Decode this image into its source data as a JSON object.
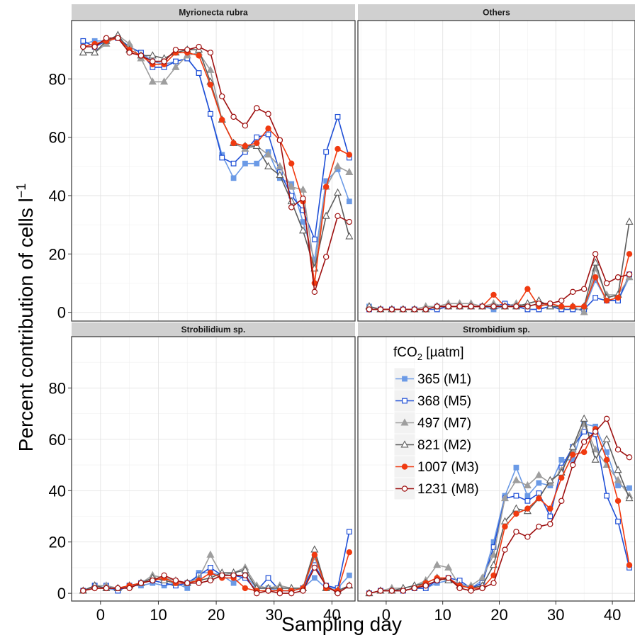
{
  "chart_data": {
    "type": "line",
    "xlabel": "Sampling day",
    "ylabel": "Percent contribution of cells  l",
    "ylabel_sup": "−1",
    "xlim": [
      -5,
      44
    ],
    "ylim": [
      -3,
      100
    ],
    "x_ticks": [
      0,
      10,
      20,
      30,
      40
    ],
    "y_ticks": [
      0,
      20,
      40,
      60,
      80
    ],
    "grid": true,
    "legend": {
      "title": "fCO",
      "title_sub": "2",
      "title_suffix": " [µatm]",
      "placement": "inside bottom-right panel, top-left",
      "entries": [
        "365 (M1)",
        "368 (M5)",
        "497 (M7)",
        "821 (M2)",
        "1007 (M3)",
        "1231 (M8)"
      ]
    },
    "series_styles": [
      {
        "name": "365 (M1)",
        "color": "#6b9ae6",
        "marker": "square",
        "filled": true
      },
      {
        "name": "368 (M5)",
        "color": "#1f4fd6",
        "marker": "square",
        "filled": false
      },
      {
        "name": "497 (M7)",
        "color": "#9e9e9e",
        "marker": "triangle",
        "filled": true
      },
      {
        "name": "821 (M2)",
        "color": "#5c5c5c",
        "marker": "triangle",
        "filled": false
      },
      {
        "name": "1007 (M3)",
        "color": "#f03a10",
        "marker": "circle",
        "filled": true
      },
      {
        "name": "1231 (M8)",
        "color": "#9e1010",
        "marker": "circle",
        "filled": false
      }
    ],
    "x": [
      -3,
      -1,
      1,
      3,
      5,
      7,
      9,
      11,
      13,
      15,
      17,
      19,
      21,
      23,
      25,
      27,
      29,
      31,
      33,
      35,
      37,
      39,
      41,
      43
    ],
    "panels": [
      {
        "title": "Myrionecta rubra",
        "series": [
          {
            "name": "365 (M1)",
            "values": [
              92,
              93,
              93,
              94,
              91,
              89,
              86,
              85,
              86,
              87,
              82,
              68,
              54,
              46,
              51,
              51,
              55,
              46,
              44,
              31,
              18,
              45,
              49,
              38
            ]
          },
          {
            "name": "368 (M5)",
            "values": [
              93,
              91,
              93,
              94,
              91,
              89,
              84,
              84,
              86,
              87,
              82,
              68,
              53,
              51,
              55,
              60,
              61,
              48,
              40,
              35,
              25,
              55,
              67,
              53
            ]
          },
          {
            "name": "497 (M7)",
            "values": [
              89,
              89,
              92,
              95,
              92,
              87,
              79,
              79,
              84,
              88,
              89,
              83,
              66,
              58,
              56,
              57,
              54,
              50,
              43,
              42,
              15,
              43,
              50,
              48
            ]
          },
          {
            "name": "821 (M2)",
            "values": [
              89,
              89,
              93,
              95,
              90,
              88,
              88,
              87,
              89,
              90,
              90,
              79,
              66,
              58,
              57,
              57,
              50,
              47,
              38,
              28,
              15,
              33,
              41,
              26
            ]
          },
          {
            "name": "1007 (M3)",
            "values": [
              91,
              92,
              93,
              94,
              90,
              88,
              85,
              85,
              89,
              89,
              88,
              78,
              66,
              58,
              57,
              58,
              63,
              59,
              51,
              38,
              10,
              43,
              56,
              54
            ]
          },
          {
            "name": "1231 (M8)",
            "values": [
              91,
              91,
              94,
              94,
              89,
              88,
              86,
              86,
              90,
              90,
              91,
              89,
              74,
              67,
              64,
              70,
              68,
              59,
              36,
              39,
              7,
              19,
              33,
              31
            ]
          }
        ]
      },
      {
        "title": "Others",
        "series": [
          {
            "name": "365 (M1)",
            "values": [
              2,
              1,
              1,
              1,
              1,
              1,
              2,
              2,
              2,
              2,
              2,
              1,
              2,
              2,
              1,
              1,
              2,
              1,
              1,
              1,
              11,
              4,
              4,
              12
            ]
          },
          {
            "name": "368 (M5)",
            "values": [
              1,
              1,
              1,
              1,
              1,
              1,
              1,
              2,
              2,
              2,
              2,
              2,
              3,
              2,
              1,
              1,
              2,
              1,
              1,
              1,
              5,
              4,
              4,
              13
            ]
          },
          {
            "name": "497 (M7)",
            "values": [
              2,
              1,
              1,
              1,
              1,
              2,
              2,
              3,
              3,
              3,
              2,
              3,
              2,
              3,
              2,
              3,
              2,
              2,
              2,
              0,
              15,
              6,
              6,
              12
            ]
          },
          {
            "name": "821 (M2)",
            "values": [
              2,
              1,
              1,
              1,
              1,
              1,
              2,
              2,
              2,
              2,
              2,
              2,
              2,
              2,
              3,
              4,
              2,
              2,
              2,
              2,
              17,
              5,
              6,
              31
            ]
          },
          {
            "name": "1007 (M3)",
            "values": [
              1,
              1,
              1,
              1,
              1,
              1,
              2,
              2,
              2,
              2,
              2,
              6,
              2,
              2,
              8,
              2,
              3,
              2,
              2,
              2,
              12,
              4,
              5,
              20
            ]
          },
          {
            "name": "1231 (M8)",
            "values": [
              1,
              1,
              1,
              1,
              1,
              1,
              2,
              2,
              2,
              2,
              2,
              2,
              2,
              2,
              2,
              3,
              3,
              4,
              7,
              8,
              20,
              10,
              12,
              13
            ]
          }
        ]
      },
      {
        "title": "Strobilidium sp.",
        "series": [
          {
            "name": "365 (M1)",
            "values": [
              1,
              3,
              2,
              1,
              3,
              3,
              4,
              3,
              4,
              2,
              8,
              8,
              7,
              4,
              7,
              2,
              2,
              1,
              1,
              2,
              6,
              2,
              2,
              7
            ]
          },
          {
            "name": "368 (M5)",
            "values": [
              1,
              3,
              3,
              1,
              3,
              4,
              5,
              4,
              3,
              4,
              7,
              10,
              7,
              7,
              6,
              1,
              6,
              1,
              1,
              2,
              11,
              3,
              2,
              24
            ]
          },
          {
            "name": "497 (M7)",
            "values": [
              1,
              3,
              3,
              2,
              3,
              4,
              7,
              6,
              5,
              4,
              6,
              15,
              7,
              8,
              10,
              3,
              2,
              3,
              2,
              2,
              14,
              2,
              1,
              3
            ]
          },
          {
            "name": "821 (M2)",
            "values": [
              1,
              3,
              2,
              2,
              3,
              4,
              6,
              5,
              4,
              4,
              5,
              6,
              8,
              8,
              9,
              2,
              2,
              2,
              2,
              2,
              17,
              2,
              1,
              3
            ]
          },
          {
            "name": "1007 (M3)",
            "values": [
              1,
              2,
              2,
              2,
              3,
              4,
              5,
              6,
              4,
              4,
              5,
              8,
              6,
              6,
              2,
              1,
              1,
              1,
              1,
              2,
              15,
              2,
              1,
              16
            ]
          },
          {
            "name": "1231 (M8)",
            "values": [
              1,
              2,
              2,
              2,
              2,
              4,
              5,
              7,
              5,
              4,
              4,
              5,
              7,
              7,
              7,
              0,
              1,
              0,
              0,
              1,
              10,
              3,
              0,
              3
            ]
          }
        ]
      },
      {
        "title": "Strombidium sp.",
        "series": [
          {
            "name": "365 (M1)",
            "values": [
              0,
              1,
              1,
              1,
              2,
              2,
              4,
              5,
              4,
              2,
              5,
              20,
              38,
              49,
              38,
              43,
              42,
              52,
              52,
              66,
              65,
              55,
              42,
              41
            ]
          },
          {
            "name": "368 (M5)",
            "values": [
              0,
              1,
              1,
              1,
              2,
              2,
              5,
              6,
              5,
              2,
              4,
              18,
              37,
              38,
              36,
              39,
              30,
              49,
              57,
              63,
              62,
              38,
              28,
              10
            ]
          },
          {
            "name": "497 (M7)",
            "values": [
              0,
              1,
              2,
              2,
              3,
              5,
              11,
              10,
              3,
              3,
              6,
              15,
              37,
              44,
              42,
              46,
              43,
              48,
              56,
              66,
              56,
              50,
              44,
              38
            ]
          },
          {
            "name": "821 (M2)",
            "values": [
              0,
              1,
              1,
              2,
              3,
              4,
              6,
              5,
              3,
              2,
              3,
              11,
              28,
              33,
              32,
              37,
              44,
              47,
              57,
              68,
              52,
              60,
              48,
              37
            ]
          },
          {
            "name": "1007 (M3)",
            "values": [
              0,
              1,
              1,
              1,
              2,
              4,
              6,
              6,
              3,
              2,
              2,
              7,
              26,
              31,
              33,
              37,
              33,
              45,
              54,
              55,
              64,
              52,
              36,
              11
            ]
          },
          {
            "name": "1231 (M8)",
            "values": [
              0,
              1,
              1,
              1,
              2,
              3,
              5,
              6,
              2,
              1,
              2,
              4,
              17,
              24,
              22,
              26,
              27,
              36,
              50,
              59,
              63,
              68,
              56,
              53
            ]
          }
        ]
      }
    ]
  }
}
